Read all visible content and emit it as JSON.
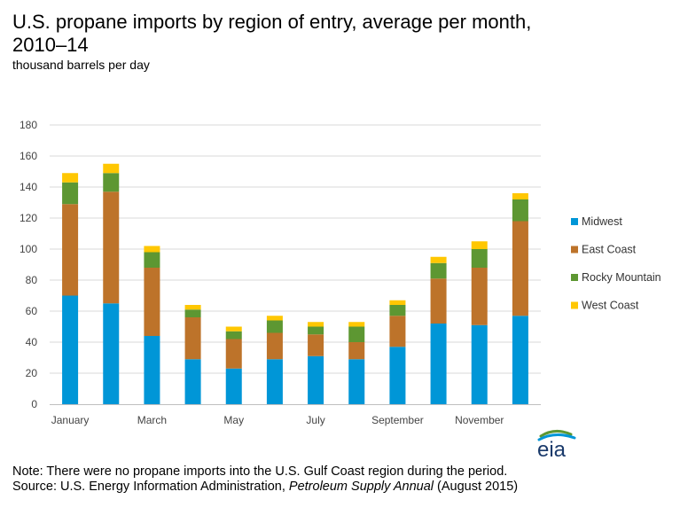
{
  "title": "U.S. propane imports by region of entry, average per month, 2010–14",
  "subtitle": "thousand barrels per day",
  "note": "Note: There were no propane imports into the U.S. Gulf Coast region during the period.",
  "source_prefix": "Source: U.S. Energy Information Administration, ",
  "source_publication": "Petroleum Supply Annual",
  "source_suffix": " (August 2015)",
  "logo_text": "eia",
  "colors": {
    "Midwest": "#0096d7",
    "East Coast": "#bd732a",
    "Rocky Mountain": "#5d9732",
    "West Coast": "#ffc702",
    "gridline": "#d9d9d9",
    "axis": "#bfbfbf"
  },
  "chart_data": {
    "type": "bar",
    "stacked": true,
    "categories": [
      "January",
      "February",
      "March",
      "April",
      "May",
      "June",
      "July",
      "August",
      "September",
      "October",
      "November",
      "December"
    ],
    "tick_labels_shown": [
      "January",
      "",
      "March",
      "",
      "May",
      "",
      "July",
      "",
      "September",
      "",
      "November",
      ""
    ],
    "series": [
      {
        "name": "Midwest",
        "values": [
          70,
          65,
          44,
          29,
          23,
          29,
          31,
          29,
          37,
          52,
          51,
          57
        ]
      },
      {
        "name": "East Coast",
        "values": [
          59,
          72,
          44,
          27,
          19,
          17,
          14,
          11,
          20,
          29,
          37,
          61
        ]
      },
      {
        "name": "Rocky Mountain",
        "values": [
          14,
          12,
          10,
          5,
          5,
          8,
          5,
          10,
          7,
          10,
          12,
          14
        ]
      },
      {
        "name": "West Coast",
        "values": [
          6,
          6,
          4,
          3,
          3,
          3,
          3,
          3,
          3,
          4,
          5,
          4
        ]
      }
    ],
    "ylim": [
      0,
      180
    ],
    "yticks": [
      0,
      20,
      40,
      60,
      80,
      100,
      120,
      140,
      160,
      180
    ],
    "grid": true,
    "legend_position": "right",
    "legend_order": [
      "Midwest",
      "East Coast",
      "Rocky Mountain",
      "West Coast"
    ]
  }
}
